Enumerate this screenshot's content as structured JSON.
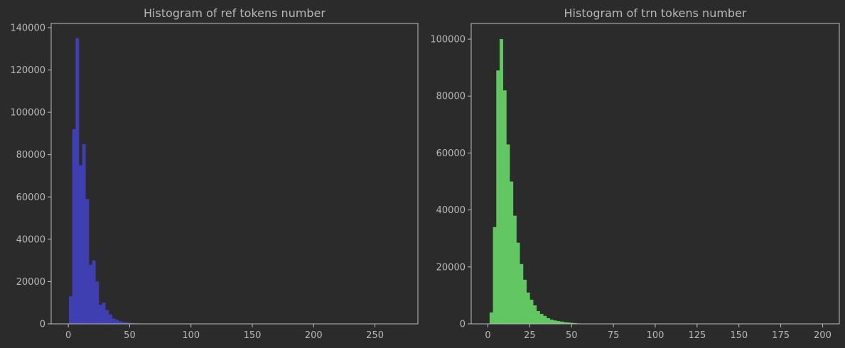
{
  "figure": {
    "background": "#2b2b2b",
    "axes_edge_color": "#bdbdbd",
    "text_color": "#b8b8b8"
  },
  "chart_data": [
    {
      "type": "bar",
      "title": "Histogram of ref tokens number",
      "xlabel": "",
      "ylabel": "",
      "color": "#3f3fb2",
      "grid": false,
      "xlim": [
        -14,
        285
      ],
      "ylim": [
        0,
        142000
      ],
      "xticks": [
        0,
        50,
        100,
        150,
        200,
        250
      ],
      "yticks": [
        0,
        20000,
        40000,
        60000,
        80000,
        100000,
        120000,
        140000
      ],
      "bin_edges": [
        0.5,
        3.2,
        5.9,
        8.6,
        11.3,
        14.0,
        16.7,
        19.4,
        22.1,
        24.8,
        27.5,
        30.2,
        32.9,
        35.6,
        38.3,
        41.0,
        43.7,
        46.4,
        49.1,
        51.8,
        54.5,
        57.2,
        59.9,
        62.6,
        65.3,
        68.0
      ],
      "values": [
        13000,
        92000,
        135000,
        75000,
        85000,
        59000,
        28000,
        30000,
        20000,
        9000,
        10000,
        6500,
        4500,
        2500,
        2000,
        1200,
        900,
        700,
        500,
        350,
        250,
        150,
        100,
        60,
        30
      ]
    },
    {
      "type": "bar",
      "title": "Histogram of trn tokens number",
      "xlabel": "",
      "ylabel": "",
      "color": "#62c762",
      "grid": false,
      "xlim": [
        -10,
        210
      ],
      "ylim": [
        0,
        105500
      ],
      "xticks": [
        0,
        25,
        50,
        75,
        100,
        125,
        150,
        175,
        200
      ],
      "yticks": [
        0,
        20000,
        40000,
        60000,
        80000,
        100000
      ],
      "bin_edges": [
        1,
        3,
        5,
        7,
        9,
        11,
        13,
        15,
        17,
        19,
        21,
        23,
        25,
        27,
        29,
        31,
        33,
        35,
        37,
        39,
        41,
        43,
        45,
        47,
        49,
        51,
        53,
        55,
        57,
        59
      ],
      "values": [
        4000,
        34000,
        89000,
        100000,
        82000,
        63000,
        50000,
        38000,
        28500,
        21000,
        15500,
        11000,
        8500,
        6500,
        4500,
        3500,
        2800,
        2000,
        1500,
        1200,
        1000,
        800,
        600,
        500,
        350,
        250,
        150,
        100,
        50
      ]
    }
  ]
}
